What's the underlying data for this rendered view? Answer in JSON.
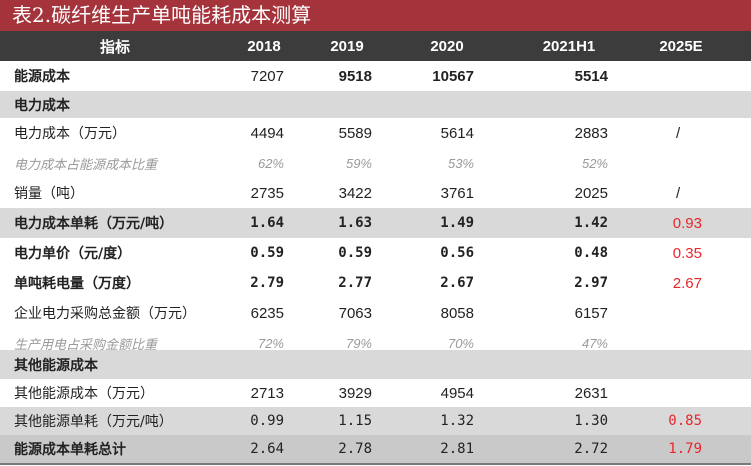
{
  "title": "表2.碳纤维生产单吨能耗成本测算",
  "header": {
    "label": "指标",
    "cols": [
      "2018",
      "2019",
      "2020",
      "2021H1",
      "2025E"
    ]
  },
  "rows": [
    {
      "label": "能源成本",
      "v": [
        "7207",
        "9518",
        "10567",
        "5514",
        ""
      ]
    },
    {
      "label": "电力成本",
      "v": [
        "",
        "",
        "",
        "",
        ""
      ]
    },
    {
      "label": "电力成本（万元）",
      "v": [
        "4494",
        "5589",
        "5614",
        "2883",
        "/"
      ]
    },
    {
      "label": "电力成本占能源成本比重",
      "v": [
        "62%",
        "59%",
        "53%",
        "52%",
        ""
      ]
    },
    {
      "label": "销量（吨）",
      "v": [
        "2735",
        "3422",
        "3761",
        "2025",
        "/"
      ]
    },
    {
      "label": "电力成本单耗（万元/吨）",
      "v": [
        "1.64",
        "1.63",
        "1.49",
        "1.42",
        "0.93"
      ]
    },
    {
      "label": "电力单价（元/度）",
      "v": [
        "0.59",
        "0.59",
        "0.56",
        "0.48",
        "0.35"
      ]
    },
    {
      "label": "单吨耗电量（万度）",
      "v": [
        "2.79",
        "2.77",
        "2.67",
        "2.97",
        "2.67"
      ]
    },
    {
      "label": "企业电力采购总金额（万元）",
      "v": [
        "6235",
        "7063",
        "8058",
        "6157",
        ""
      ]
    },
    {
      "label": "生产用电占采购金额比重",
      "v": [
        "72%",
        "79%",
        "70%",
        "47%",
        ""
      ]
    },
    {
      "label": "其他能源成本",
      "v": [
        "",
        "",
        "",
        "",
        ""
      ]
    },
    {
      "label": "其他能源成本（万元）",
      "v": [
        "2713",
        "3929",
        "4954",
        "2631",
        ""
      ]
    },
    {
      "label": "其他能源单耗（万元/吨）",
      "v": [
        "0.99",
        "1.15",
        "1.32",
        "1.30",
        "0.85"
      ]
    },
    {
      "label": "能源成本单耗总计",
      "v": [
        "2.64",
        "2.78",
        "2.81",
        "2.72",
        "1.79"
      ]
    }
  ],
  "colors": {
    "title_bg": "#a5333b",
    "header_bg": "#3c3c3c",
    "shade": "#d9d9d9",
    "highlight": "#e8262b"
  }
}
